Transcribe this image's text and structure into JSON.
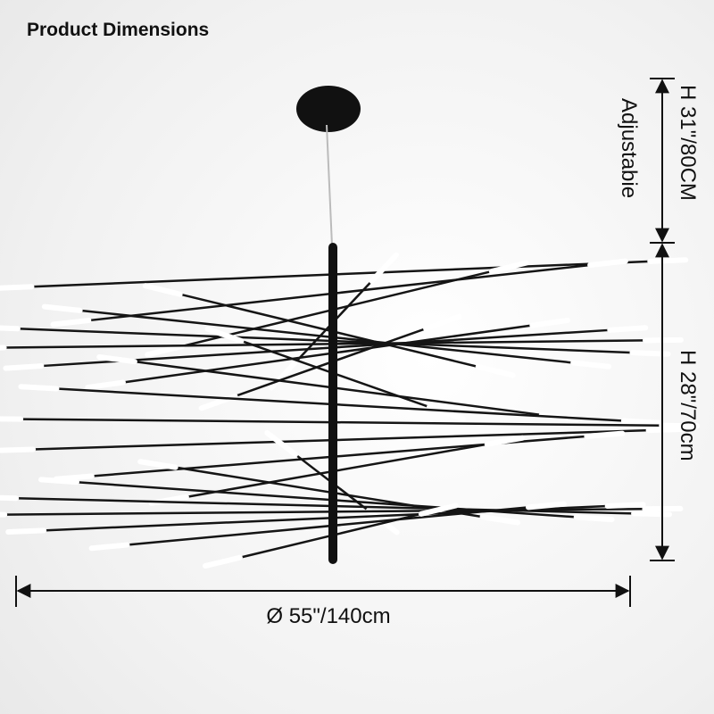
{
  "header": {
    "title": "Product Dimensions"
  },
  "dimensions": {
    "hanging_height": "H 31\"/80CM",
    "hanging_note": "Adjustabie",
    "body_height": "H 28\"/70cm",
    "diameter": "Ø 55\"/140cm"
  }
}
